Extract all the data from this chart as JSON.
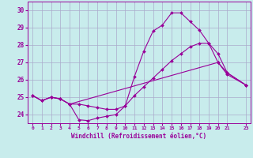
{
  "title": "",
  "xlabel": "Windchill (Refroidissement éolien,°C)",
  "ylabel": "",
  "background_color": "#c8ecec",
  "line_color": "#990099",
  "grid_color": "#aaaacc",
  "ylim": [
    23.5,
    30.5
  ],
  "xlim": [
    -0.5,
    23.5
  ],
  "yticks": [
    24,
    25,
    26,
    27,
    28,
    29,
    30
  ],
  "xtick_values": [
    0,
    1,
    2,
    3,
    4,
    5,
    6,
    7,
    8,
    9,
    10,
    11,
    12,
    13,
    14,
    15,
    16,
    17,
    18,
    19,
    20,
    21,
    23
  ],
  "xtick_labels": [
    "0",
    "1",
    "2",
    "3",
    "4",
    "5",
    "6",
    "7",
    "8",
    "9",
    "10",
    "11",
    "12",
    "13",
    "14",
    "15",
    "16",
    "17",
    "18",
    "19",
    "20",
    "21",
    "23"
  ],
  "series": [
    {
      "x": [
        0,
        1,
        2,
        3,
        4,
        5,
        6,
        7,
        8,
        9,
        10,
        11,
        12,
        13,
        14,
        15,
        16,
        17,
        18,
        19,
        20,
        21,
        23
      ],
      "y": [
        25.1,
        24.8,
        25.0,
        24.9,
        24.6,
        23.7,
        23.65,
        23.8,
        23.9,
        24.0,
        24.5,
        26.2,
        27.65,
        28.8,
        29.15,
        29.85,
        29.85,
        29.35,
        28.85,
        28.1,
        27.0,
        26.3,
        25.7
      ]
    },
    {
      "x": [
        0,
        1,
        2,
        3,
        4,
        5,
        6,
        7,
        8,
        9,
        10,
        11,
        12,
        13,
        14,
        15,
        16,
        17,
        18,
        19,
        20,
        21,
        23
      ],
      "y": [
        25.1,
        24.8,
        25.0,
        24.9,
        24.6,
        24.6,
        24.5,
        24.4,
        24.3,
        24.3,
        24.5,
        25.1,
        25.6,
        26.1,
        26.6,
        27.1,
        27.5,
        27.9,
        28.1,
        28.1,
        27.5,
        26.4,
        25.7
      ]
    },
    {
      "x": [
        0,
        1,
        2,
        3,
        4,
        20,
        21,
        23
      ],
      "y": [
        25.1,
        24.8,
        25.0,
        24.9,
        24.6,
        27.0,
        26.4,
        25.7
      ]
    }
  ]
}
